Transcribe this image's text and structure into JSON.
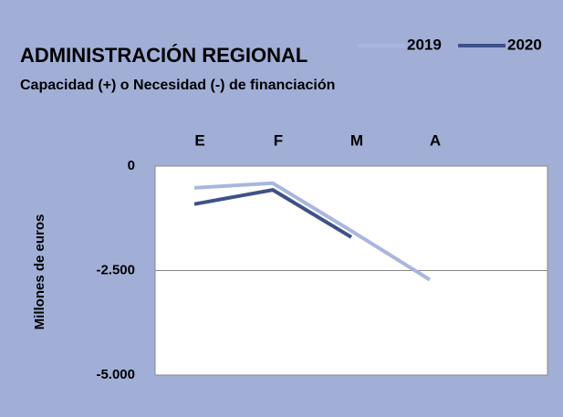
{
  "chart_data": {
    "type": "line",
    "title": "ADMINISTRACIÓN REGIONAL",
    "subtitle": "Capacidad (+) o Necesidad (-) de financiación",
    "y_label": "Millones de euros",
    "categories": [
      "E",
      "F",
      "M",
      "A",
      null
    ],
    "series": [
      {
        "name": "2019",
        "color": "#a9b6df",
        "values": [
          -520,
          -410,
          -1550,
          -2720,
          null
        ]
      },
      {
        "name": "2020",
        "color": "#3f5189",
        "values": [
          -910,
          -570,
          -1700,
          null,
          null
        ]
      }
    ],
    "ylim": [
      -5000,
      0
    ],
    "yticks": [
      0,
      {
        "value": -2500,
        "label": "-2.500"
      },
      {
        "value": -5000,
        "label": "-5.000"
      }
    ],
    "grid": true,
    "legend": "top-right"
  }
}
